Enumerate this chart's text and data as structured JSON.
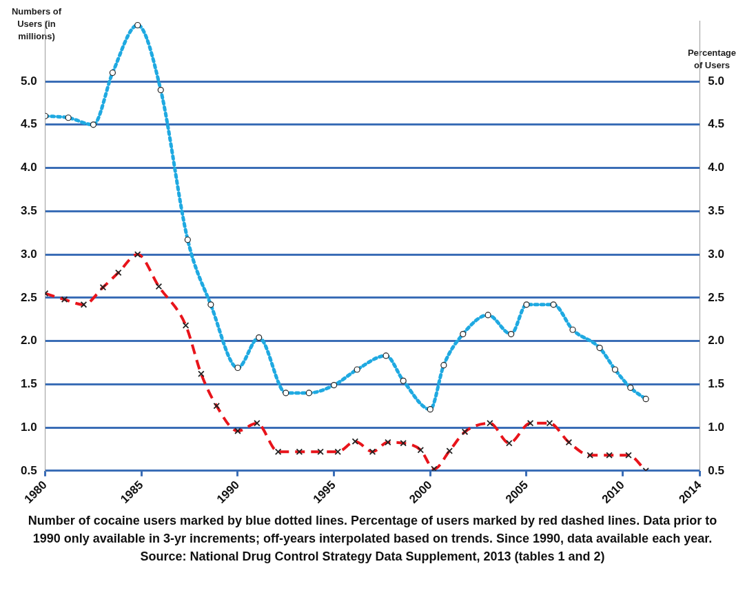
{
  "chart_data": {
    "type": "line",
    "ylabel": "Numbers of Users (in millions)",
    "y2label": "Percentage of Users",
    "xlim": [
      1980,
      2014
    ],
    "xticks": [
      1980,
      1985,
      1990,
      1995,
      2000,
      2005,
      2010,
      2014
    ],
    "ylim": [
      0.5,
      5.7
    ],
    "yticks": [
      0.5,
      {
        "value": 1,
        "label": "1.0"
      },
      1.5,
      {
        "value": 2,
        "label": "2.0"
      },
      2.5,
      {
        "value": 3,
        "label": "3.0"
      },
      3.5,
      {
        "value": 4,
        "label": "4.0"
      },
      4.5,
      {
        "value": 5,
        "label": "5.0"
      }
    ],
    "y2lim": [
      0.5,
      5.7
    ],
    "y2ticks": [
      0.5,
      {
        "value": 1,
        "label": "1.0"
      },
      1.5,
      {
        "value": 2,
        "label": "2.0"
      },
      2.5,
      {
        "value": 3,
        "label": "3.0"
      },
      3.5,
      {
        "value": 4,
        "label": "4.0"
      },
      4.5,
      {
        "value": 5,
        "label": "5.0"
      }
    ],
    "grid": "y",
    "series": [
      {
        "color": "#1fa9e1",
        "marker": "circle",
        "line_style": "dotted",
        "x": [
          1980,
          1981.2,
          1982.5,
          1983.5,
          1984.8,
          1986,
          1987.4,
          1988.6,
          1990,
          1991.1,
          1992.5,
          1993.7,
          1995,
          1996.2,
          1997.7,
          1998.6,
          2000,
          2000.7,
          2001.7,
          2003,
          2004.2,
          2005,
          2006.4,
          2007.4,
          2008.8,
          2009.6,
          2010.4,
          2011.2
        ],
        "values": [
          4.6,
          4.58,
          4.5,
          5.1,
          5.65,
          4.9,
          3.17,
          2.42,
          1.69,
          2.04,
          1.4,
          1.4,
          1.49,
          1.67,
          1.83,
          1.54,
          1.21,
          1.72,
          2.08,
          2.3,
          2.08,
          2.42,
          2.42,
          2.13,
          1.92,
          1.67,
          1.46,
          1.33
        ]
      },
      {
        "color": "#e8141b",
        "marker": "cross",
        "line_style": "dashed",
        "axis": "y2",
        "x": [
          1980,
          1981,
          1982,
          1983,
          1983.8,
          1984.8,
          1985.9,
          1987.3,
          1988.1,
          1988.9,
          1990,
          1991,
          1992.1,
          1993.2,
          1994.3,
          1995.2,
          1996.1,
          1997,
          1997.8,
          1998.6,
          1999.5,
          2000.2,
          2001,
          2001.8,
          2003.1,
          2004.1,
          2005.2,
          2006.2,
          2007.2,
          2008.3,
          2009.3,
          2010.3,
          2011.2
        ],
        "values": [
          2.55,
          2.48,
          2.42,
          2.62,
          2.79,
          3.0,
          2.63,
          2.18,
          1.62,
          1.25,
          0.96,
          1.05,
          0.72,
          0.72,
          0.72,
          0.72,
          0.84,
          0.72,
          0.83,
          0.82,
          0.74,
          0.52,
          0.73,
          0.95,
          1.05,
          0.82,
          1.05,
          1.05,
          0.83,
          0.68,
          0.68,
          0.68,
          0.5
        ]
      }
    ],
    "annotations": [
      "Number of cocaine users marked by blue dotted lines. Percentage of users marked by red dashed lines. Data prior to 1990 only available in 3-yr increments; off-years interpolated based on trends. Since 1990, data available each year. Source: National Drug Control Strategy Data Supplement, 2013 (tables 1 and 2)"
    ]
  }
}
